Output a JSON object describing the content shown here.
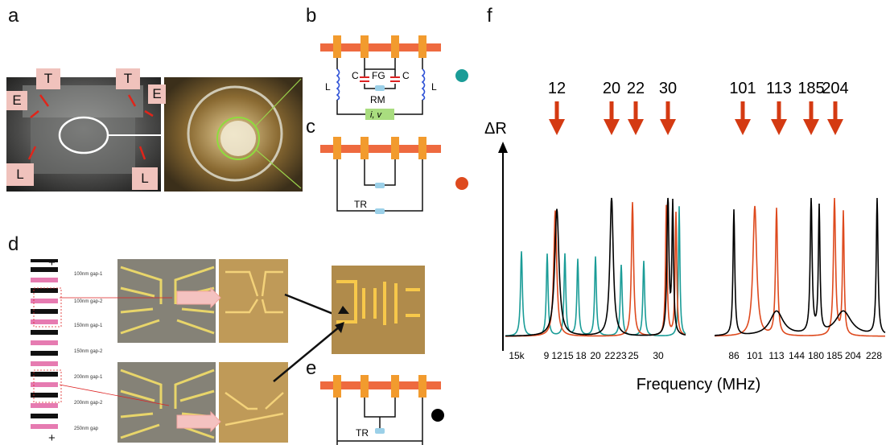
{
  "panels": {
    "a": "a",
    "b": "b",
    "c": "c",
    "d": "d",
    "e": "e",
    "f": "f"
  },
  "photo_a": {
    "tags": [
      "T",
      "T",
      "E",
      "E",
      "L",
      "L"
    ]
  },
  "circuit_b": {
    "labels": {
      "c_left": "C",
      "fg": "FG",
      "c_right": "C",
      "rm": "RM",
      "l_left": "L",
      "l_right": "L",
      "source": "i, v"
    },
    "marker_color": "#1a9c97"
  },
  "circuit_c": {
    "labels": {
      "tr": "TR"
    },
    "marker_color": "#de4a1e"
  },
  "circuit_e": {
    "labels": {
      "tr": "TR"
    },
    "marker_color": "#000000"
  },
  "panel_d": {
    "plus_top": "+",
    "plus_bottom": "+",
    "gap_labels": [
      "100nm gap-1",
      "100nm gap-2",
      "150nm gap-1",
      "150nm gap-2",
      "200nm gap-1",
      "200nm gap-2",
      "250nm gap"
    ]
  },
  "chart_data": {
    "type": "line",
    "xlabel": "Frequency (MHz)",
    "ylabel": "ΔR",
    "segments": [
      {
        "ticks": [
          "15k",
          "9",
          "12",
          "15",
          "18",
          "20",
          "22",
          "23",
          "25",
          "30"
        ]
      },
      {
        "ticks": [
          "86",
          "101",
          "113",
          "144",
          "180",
          "185",
          "204",
          "228"
        ]
      }
    ],
    "arrow_labels": [
      "12",
      "20",
      "22",
      "30",
      "101",
      "113",
      "185",
      "204"
    ],
    "series": [
      {
        "color": "#1a9c97"
      },
      {
        "color": "#de4a1e"
      },
      {
        "color": "#000000"
      }
    ],
    "arrow_color": "#d43a12"
  }
}
